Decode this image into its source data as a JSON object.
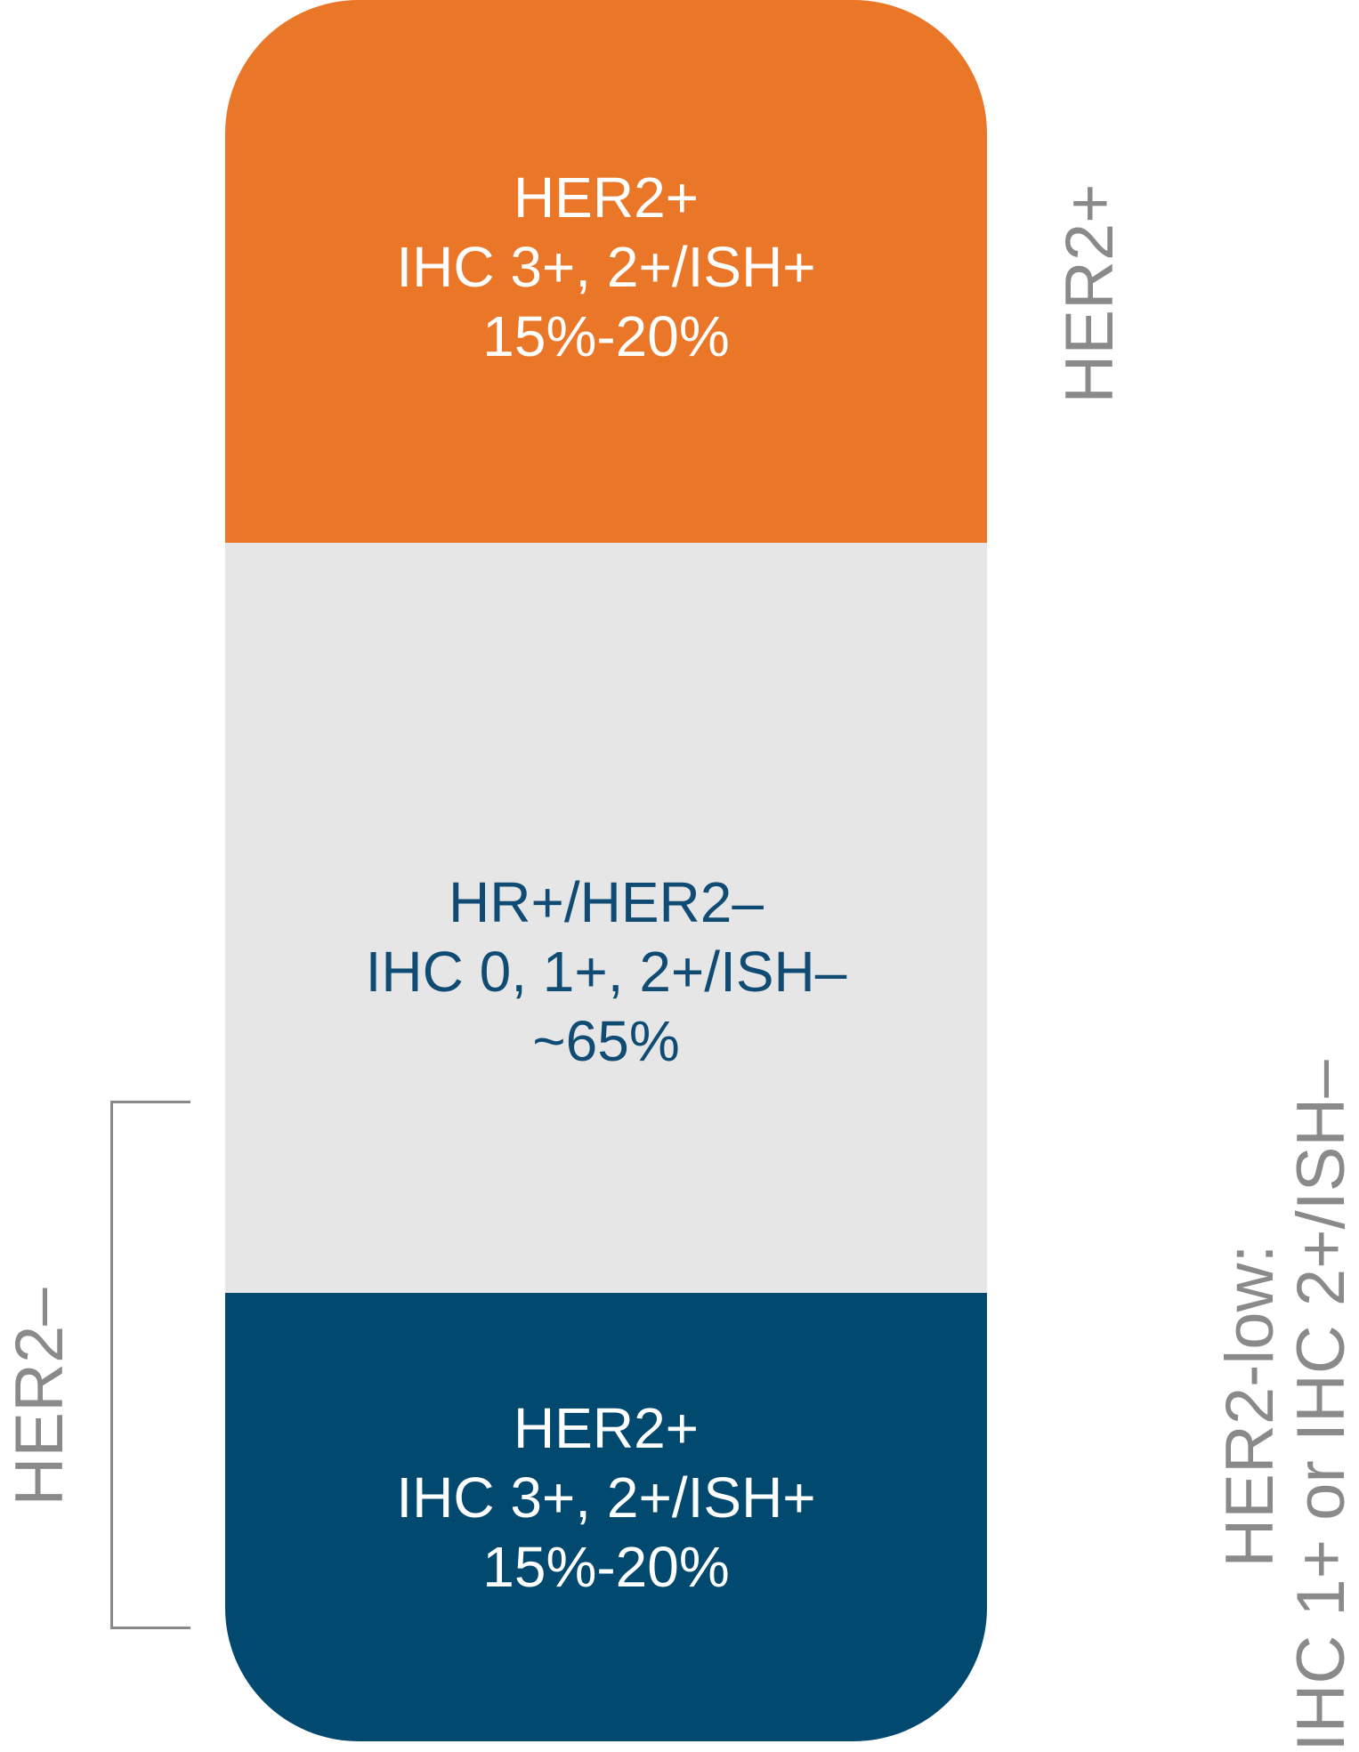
{
  "segments": {
    "top": {
      "line1": "HER2+",
      "line2": "IHC 3+, 2+/ISH+",
      "line3": "15%-20%",
      "color": "#ea7728"
    },
    "middle": {
      "line1": "HR+/HER2–",
      "line2": "IHC 0, 1+, 2+/ISH–",
      "line3": "~65%",
      "color": "#e6e6e7"
    },
    "bottom": {
      "line1": "HER2+",
      "line2": "IHC 3+, 2+/ISH+",
      "line3": "15%-20%",
      "color": "#02496f"
    }
  },
  "side_labels": {
    "right_top": "HER2+",
    "left": "HER2–",
    "right_bottom_line1": "HER2-low:",
    "right_bottom_line2": "IHC 1+ or IHC 2+/ISH–"
  },
  "colors": {
    "label_gray": "#8a8a8a",
    "mid_text": "#0f4b72"
  }
}
